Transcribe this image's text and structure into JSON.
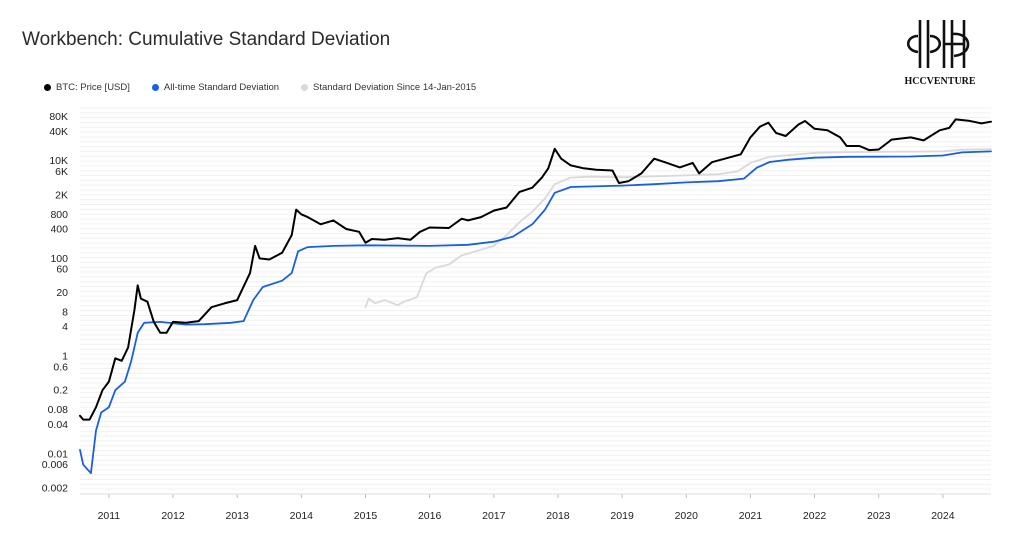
{
  "title": "Workbench: Cumulative Standard Deviation",
  "logo": {
    "text": "HCCVENTURE"
  },
  "legend": [
    {
      "label": "BTC: Price [USD]",
      "color": "#000000"
    },
    {
      "label": "All-time Standard Deviation",
      "color": "#1a5fe0"
    },
    {
      "label": "Standard Deviation Since 14-Jan-2015",
      "color": "#d9d9d9"
    }
  ],
  "chart_data": {
    "type": "line",
    "title": "Workbench: Cumulative Standard Deviation",
    "x_scale": "time (years)",
    "y_scale": "log",
    "xlim": [
      2010.55,
      2024.75
    ],
    "ylim": [
      0.0015,
      120000
    ],
    "grid": true,
    "legend_position": "top-left",
    "x_ticks": [
      "2011",
      "2012",
      "2013",
      "2014",
      "2015",
      "2016",
      "2017",
      "2018",
      "2019",
      "2020",
      "2021",
      "2022",
      "2023",
      "2024"
    ],
    "y_ticks": [
      "80K",
      "40K",
      "10K",
      "6K",
      "2K",
      "800",
      "400",
      "100",
      "60",
      "20",
      "8",
      "4",
      "1",
      "0.6",
      "0.2",
      "0.08",
      "0.04",
      "0.01",
      "0.006",
      "0.002"
    ],
    "series": [
      {
        "name": "BTC: Price [USD]",
        "color": "#000000",
        "points": [
          [
            2010.55,
            0.06
          ],
          [
            2010.6,
            0.05
          ],
          [
            2010.7,
            0.05
          ],
          [
            2010.8,
            0.09
          ],
          [
            2010.9,
            0.2
          ],
          [
            2011.0,
            0.3
          ],
          [
            2011.1,
            0.9
          ],
          [
            2011.2,
            0.8
          ],
          [
            2011.3,
            1.5
          ],
          [
            2011.4,
            9
          ],
          [
            2011.45,
            28
          ],
          [
            2011.5,
            15
          ],
          [
            2011.6,
            13
          ],
          [
            2011.7,
            5
          ],
          [
            2011.8,
            3
          ],
          [
            2011.9,
            3
          ],
          [
            2012.0,
            5
          ],
          [
            2012.2,
            4.8
          ],
          [
            2012.4,
            5.2
          ],
          [
            2012.6,
            10
          ],
          [
            2012.8,
            12
          ],
          [
            2013.0,
            14
          ],
          [
            2013.2,
            50
          ],
          [
            2013.28,
            180
          ],
          [
            2013.35,
            100
          ],
          [
            2013.5,
            95
          ],
          [
            2013.7,
            130
          ],
          [
            2013.85,
            300
          ],
          [
            2013.92,
            1000
          ],
          [
            2014.0,
            800
          ],
          [
            2014.1,
            700
          ],
          [
            2014.3,
            500
          ],
          [
            2014.5,
            600
          ],
          [
            2014.7,
            400
          ],
          [
            2014.9,
            350
          ],
          [
            2015.0,
            210
          ],
          [
            2015.1,
            250
          ],
          [
            2015.3,
            240
          ],
          [
            2015.5,
            260
          ],
          [
            2015.7,
            240
          ],
          [
            2015.85,
            350
          ],
          [
            2016.0,
            430
          ],
          [
            2016.3,
            420
          ],
          [
            2016.5,
            650
          ],
          [
            2016.6,
            600
          ],
          [
            2016.8,
            700
          ],
          [
            2017.0,
            950
          ],
          [
            2017.2,
            1100
          ],
          [
            2017.4,
            2300
          ],
          [
            2017.6,
            2800
          ],
          [
            2017.75,
            4500
          ],
          [
            2017.85,
            7000
          ],
          [
            2017.95,
            17500
          ],
          [
            2018.05,
            11000
          ],
          [
            2018.2,
            8000
          ],
          [
            2018.4,
            7000
          ],
          [
            2018.6,
            6500
          ],
          [
            2018.85,
            6300
          ],
          [
            2018.95,
            3500
          ],
          [
            2019.1,
            3800
          ],
          [
            2019.3,
            5500
          ],
          [
            2019.5,
            11000
          ],
          [
            2019.7,
            9000
          ],
          [
            2019.9,
            7300
          ],
          [
            2020.1,
            9000
          ],
          [
            2020.2,
            5500
          ],
          [
            2020.4,
            9300
          ],
          [
            2020.6,
            11000
          ],
          [
            2020.85,
            13500
          ],
          [
            2021.0,
            30000
          ],
          [
            2021.15,
            50000
          ],
          [
            2021.28,
            60000
          ],
          [
            2021.4,
            37000
          ],
          [
            2021.55,
            32000
          ],
          [
            2021.75,
            55000
          ],
          [
            2021.85,
            65000
          ],
          [
            2022.0,
            45000
          ],
          [
            2022.2,
            42000
          ],
          [
            2022.4,
            30000
          ],
          [
            2022.5,
            20000
          ],
          [
            2022.7,
            20000
          ],
          [
            2022.85,
            16500
          ],
          [
            2023.0,
            17000
          ],
          [
            2023.2,
            27000
          ],
          [
            2023.5,
            30000
          ],
          [
            2023.7,
            26000
          ],
          [
            2023.95,
            42000
          ],
          [
            2024.1,
            47000
          ],
          [
            2024.2,
            70000
          ],
          [
            2024.4,
            66000
          ],
          [
            2024.6,
            58000
          ],
          [
            2024.75,
            63000
          ]
        ]
      },
      {
        "name": "All-time Standard Deviation",
        "color": "#1a5fe0",
        "points": [
          [
            2010.55,
            0.012
          ],
          [
            2010.6,
            0.006
          ],
          [
            2010.72,
            0.004
          ],
          [
            2010.8,
            0.03
          ],
          [
            2010.88,
            0.07
          ],
          [
            2011.0,
            0.09
          ],
          [
            2011.1,
            0.2
          ],
          [
            2011.25,
            0.3
          ],
          [
            2011.35,
            0.8
          ],
          [
            2011.45,
            3
          ],
          [
            2011.55,
            4.8
          ],
          [
            2011.8,
            5
          ],
          [
            2012.2,
            4.4
          ],
          [
            2012.5,
            4.5
          ],
          [
            2012.9,
            4.8
          ],
          [
            2013.1,
            5.2
          ],
          [
            2013.25,
            14
          ],
          [
            2013.4,
            26
          ],
          [
            2013.7,
            35
          ],
          [
            2013.85,
            50
          ],
          [
            2013.95,
            140
          ],
          [
            2014.1,
            170
          ],
          [
            2014.5,
            180
          ],
          [
            2015.0,
            185
          ],
          [
            2016.0,
            180
          ],
          [
            2016.6,
            190
          ],
          [
            2017.0,
            220
          ],
          [
            2017.3,
            280
          ],
          [
            2017.6,
            500
          ],
          [
            2017.8,
            1000
          ],
          [
            2017.95,
            2200
          ],
          [
            2018.2,
            2900
          ],
          [
            2019.0,
            3100
          ],
          [
            2019.5,
            3300
          ],
          [
            2020.0,
            3600
          ],
          [
            2020.5,
            3800
          ],
          [
            2020.9,
            4300
          ],
          [
            2021.1,
            7200
          ],
          [
            2021.3,
            9400
          ],
          [
            2021.6,
            10500
          ],
          [
            2022.0,
            11500
          ],
          [
            2022.5,
            12000
          ],
          [
            2023.0,
            12100
          ],
          [
            2023.5,
            12200
          ],
          [
            2024.0,
            12800
          ],
          [
            2024.3,
            14800
          ],
          [
            2024.75,
            15500
          ]
        ]
      },
      {
        "name": "Standard Deviation Since 14-Jan-2015",
        "color": "#d9d9d9",
        "points": [
          [
            2015.0,
            10
          ],
          [
            2015.05,
            15
          ],
          [
            2015.15,
            12
          ],
          [
            2015.3,
            14
          ],
          [
            2015.5,
            11
          ],
          [
            2015.6,
            13
          ],
          [
            2015.8,
            16
          ],
          [
            2015.95,
            50
          ],
          [
            2016.1,
            65
          ],
          [
            2016.3,
            75
          ],
          [
            2016.5,
            115
          ],
          [
            2016.8,
            150
          ],
          [
            2017.0,
            180
          ],
          [
            2017.2,
            300
          ],
          [
            2017.4,
            550
          ],
          [
            2017.6,
            900
          ],
          [
            2017.8,
            1700
          ],
          [
            2017.95,
            3300
          ],
          [
            2018.2,
            4500
          ],
          [
            2018.5,
            4700
          ],
          [
            2019.0,
            4600
          ],
          [
            2019.5,
            4800
          ],
          [
            2020.0,
            5000
          ],
          [
            2020.5,
            5300
          ],
          [
            2020.8,
            6000
          ],
          [
            2021.0,
            9000
          ],
          [
            2021.3,
            12000
          ],
          [
            2021.6,
            13000
          ],
          [
            2022.0,
            14500
          ],
          [
            2022.5,
            15000
          ],
          [
            2023.0,
            15200
          ],
          [
            2023.5,
            15300
          ],
          [
            2024.0,
            15600
          ],
          [
            2024.3,
            16800
          ],
          [
            2024.75,
            17200
          ]
        ]
      }
    ]
  }
}
